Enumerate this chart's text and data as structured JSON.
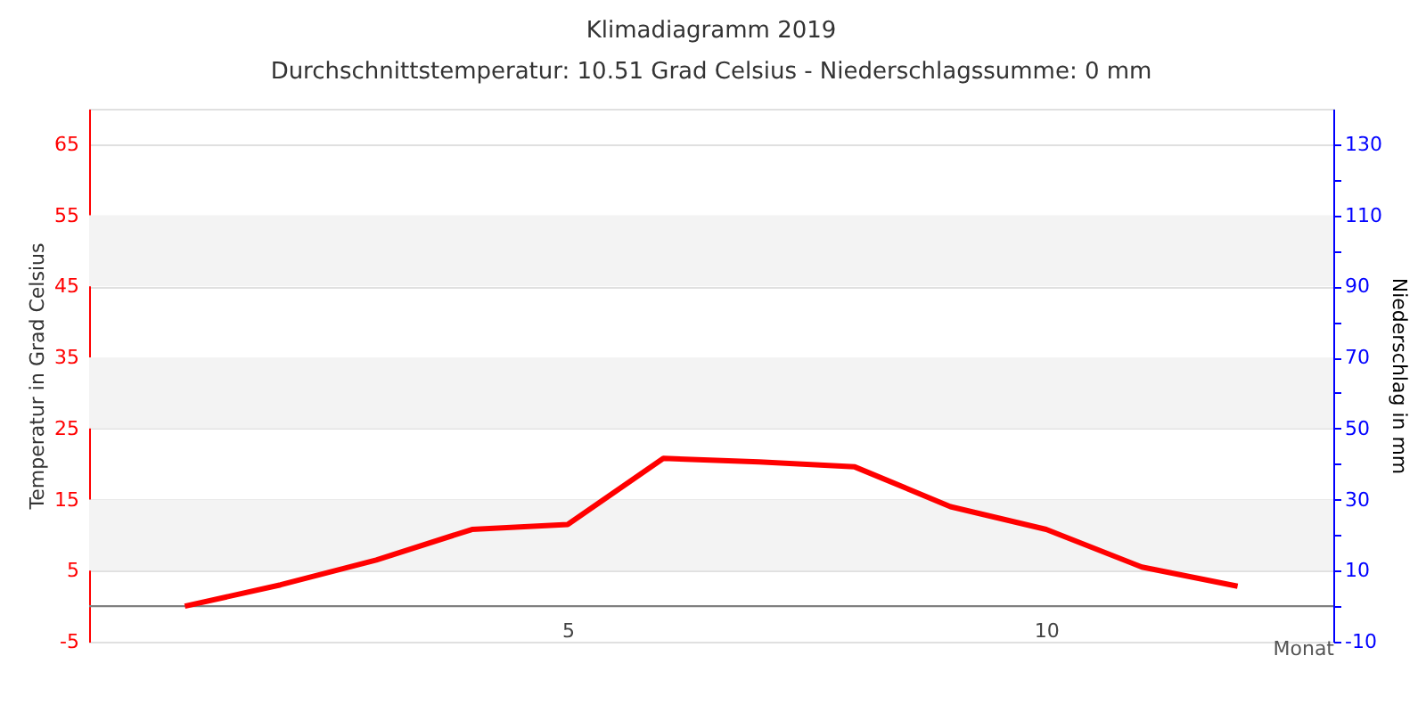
{
  "chart_data": {
    "type": "line",
    "title": "Klimadiagramm 2019",
    "subtitle": "Durchschnittstemperatur: 10.51 Grad Celsius   -   Niederschlagssumme: 0 mm",
    "xlabel": "Monat",
    "ylabel": "Temperatur in Grad Celsius",
    "y2label": "Niederschlag in mm",
    "x": [
      1,
      2,
      3,
      4,
      5,
      6,
      7,
      8,
      9,
      10,
      11,
      12
    ],
    "series": [
      {
        "color": "#ff0000",
        "values": [
          0,
          3,
          6.5,
          10.8,
          11.5,
          20.8,
          20.3,
          19.6,
          14,
          10.8,
          5.5,
          2.8
        ]
      }
    ],
    "xlim": [
      0,
      13
    ],
    "xticks": [
      5,
      10
    ],
    "ylim": [
      -5,
      70
    ],
    "yticks": [
      -5,
      5,
      15,
      25,
      35,
      45,
      55,
      65
    ],
    "y2lim": [
      -10,
      140
    ],
    "y2ticks": [
      -10,
      {
        "value": 0,
        "label": null
      },
      10,
      {
        "value": 20,
        "label": null
      },
      30,
      {
        "value": 40,
        "label": null
      },
      50,
      {
        "value": 60,
        "label": null
      },
      70,
      {
        "value": 80,
        "label": null
      },
      90,
      {
        "value": 100,
        "label": null
      },
      110,
      {
        "value": 120,
        "label": null
      },
      130
    ],
    "ref_lines": [
      {
        "axis": "y",
        "value": 0,
        "color": "#808080"
      }
    ],
    "bands": [
      {
        "axis": "y",
        "from": 5,
        "to": 15,
        "color": "#f3f3f3"
      },
      {
        "axis": "y",
        "from": 25,
        "to": 35,
        "color": "#f3f3f3"
      },
      {
        "axis": "y",
        "from": 45,
        "to": 55,
        "color": "#f3f3f3"
      }
    ],
    "grid": "y",
    "marker": "none",
    "line_style": "solid"
  }
}
